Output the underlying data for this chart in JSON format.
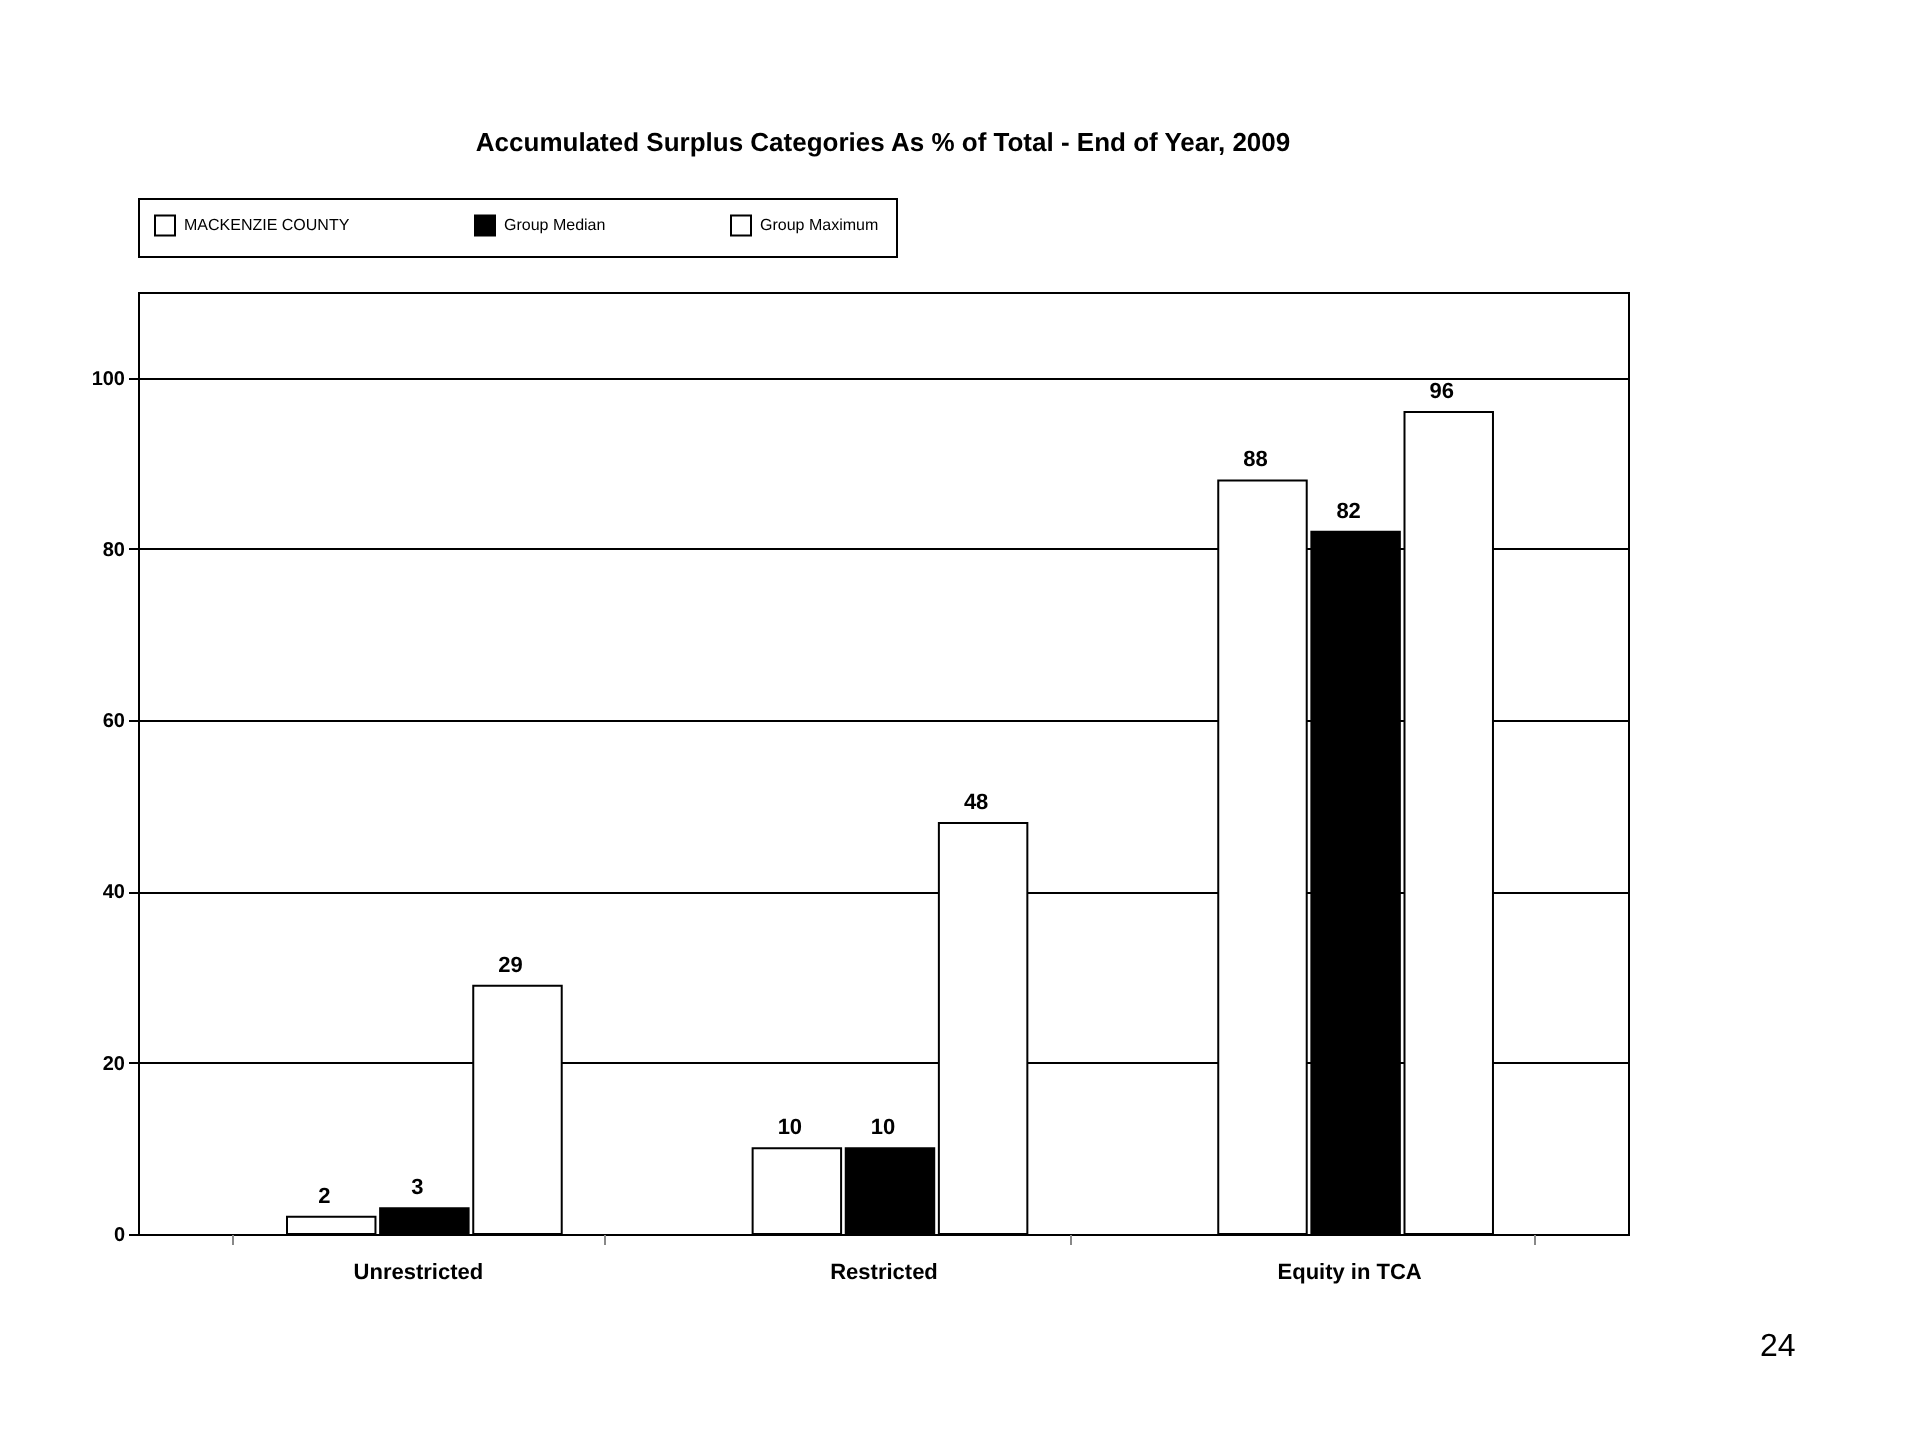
{
  "chart_data": {
    "type": "bar",
    "title": "Accumulated Surplus Categories As % of Total - End of Year, 2009",
    "categories": [
      "Unrestricted",
      "Restricted",
      "Equity in TCA"
    ],
    "series": [
      {
        "name": "MACKENZIE COUNTY",
        "color": "#ffffff",
        "values": [
          2,
          10,
          88
        ]
      },
      {
        "name": "Group Median",
        "color": "#000000",
        "values": [
          3,
          10,
          82
        ]
      },
      {
        "name": "Group Maximum",
        "color": "#ffffff",
        "values": [
          29,
          48,
          96
        ]
      }
    ],
    "ylim": [
      0,
      110
    ],
    "yticks": [
      0,
      20,
      40,
      60,
      80,
      100
    ],
    "grid": "y",
    "legend": "top",
    "data_labels": true,
    "annotations": [
      "24"
    ]
  }
}
